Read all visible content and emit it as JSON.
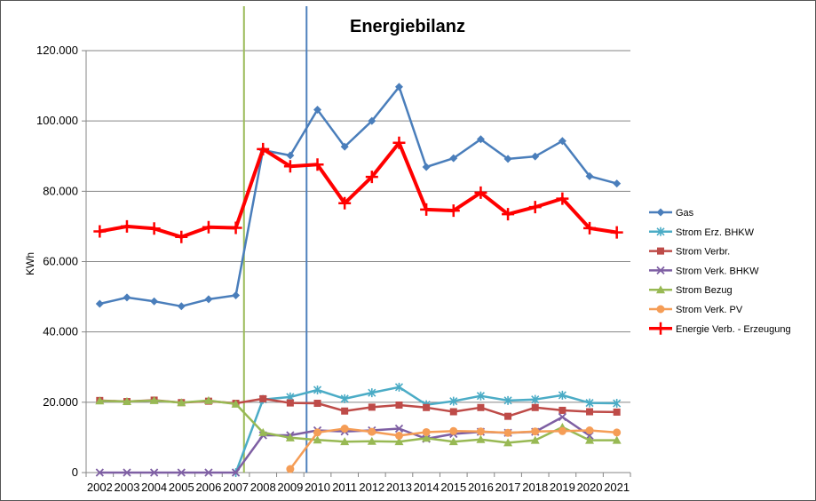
{
  "chart_data": {
    "type": "line",
    "title": "Energiebilanz",
    "ylabel": "KWh",
    "xlabel": "",
    "ylim": [
      0,
      120000
    ],
    "yticks": [
      0,
      20000,
      40000,
      60000,
      80000,
      100000,
      120000
    ],
    "ytick_labels": [
      "0",
      "20.000",
      "40.000",
      "60.000",
      "80.000",
      "100.000",
      "120.000"
    ],
    "categories": [
      "2002",
      "2003",
      "2004",
      "2005",
      "2006",
      "2007",
      "2008",
      "2009",
      "2010",
      "2011",
      "2012",
      "2013",
      "2014",
      "2015",
      "2016",
      "2017",
      "2018",
      "2019",
      "2020",
      "2021"
    ],
    "grid": "horizontal",
    "legend_position": "right",
    "vertical_markers": [
      {
        "x": 2007.3,
        "color": "#9bbb59"
      },
      {
        "x": 2009.6,
        "color": "#4f81bd"
      }
    ],
    "series": [
      {
        "name": "Gas",
        "color": "#4a7ebb",
        "marker": "diamond",
        "width": 2.5,
        "values": [
          48000,
          49800,
          48700,
          47300,
          49300,
          50400,
          91700,
          90200,
          103200,
          92700,
          100000,
          109700,
          86900,
          89400,
          94800,
          89200,
          89900,
          94300,
          84300,
          82200
        ]
      },
      {
        "name": "Strom Erz. BHKW",
        "color": "#4bacc6",
        "marker": "asterisk",
        "width": 2.5,
        "values": [
          null,
          null,
          null,
          null,
          null,
          0,
          20800,
          21500,
          23500,
          21000,
          22700,
          24300,
          19300,
          20300,
          21800,
          20500,
          20800,
          22000,
          19800,
          19700
        ]
      },
      {
        "name": "Strom Verbr.",
        "color": "#be4b48",
        "marker": "square",
        "width": 2.5,
        "values": [
          20500,
          20200,
          20600,
          19900,
          20300,
          19700,
          21000,
          19800,
          19700,
          17500,
          18600,
          19200,
          18500,
          17300,
          18500,
          16000,
          18500,
          17700,
          17300,
          17200
        ]
      },
      {
        "name": "Strom Verk. BHKW",
        "color": "#7e5fa3",
        "marker": "x",
        "width": 2.5,
        "values": [
          0,
          0,
          0,
          0,
          0,
          0,
          10600,
          10600,
          12000,
          11700,
          12000,
          12500,
          9600,
          11000,
          11600,
          11300,
          11600,
          15800,
          10500,
          null
        ]
      },
      {
        "name": "Strom Bezug",
        "color": "#98b954",
        "marker": "triangle",
        "width": 2.5,
        "values": [
          20400,
          20200,
          20500,
          19900,
          20500,
          19500,
          11400,
          9900,
          9300,
          8800,
          8900,
          8800,
          9800,
          8800,
          9400,
          8500,
          9200,
          12900,
          9200,
          9200
        ]
      },
      {
        "name": "Strom Verk. PV",
        "color": "#f59d56",
        "marker": "circle",
        "width": 2.5,
        "values": [
          null,
          null,
          null,
          null,
          null,
          null,
          null,
          1000,
          11400,
          12500,
          11600,
          10500,
          11500,
          11800,
          11700,
          11300,
          11700,
          11800,
          12000,
          11400
        ]
      },
      {
        "name": "Energie Verb. - Erzeugung",
        "color": "#ff0000",
        "marker": "plus",
        "width": 4,
        "values": [
          68600,
          70000,
          69400,
          67000,
          69800,
          69600,
          92000,
          87100,
          87600,
          76600,
          84100,
          93800,
          74800,
          74500,
          79600,
          73500,
          75500,
          77900,
          69500,
          68300
        ]
      }
    ]
  }
}
